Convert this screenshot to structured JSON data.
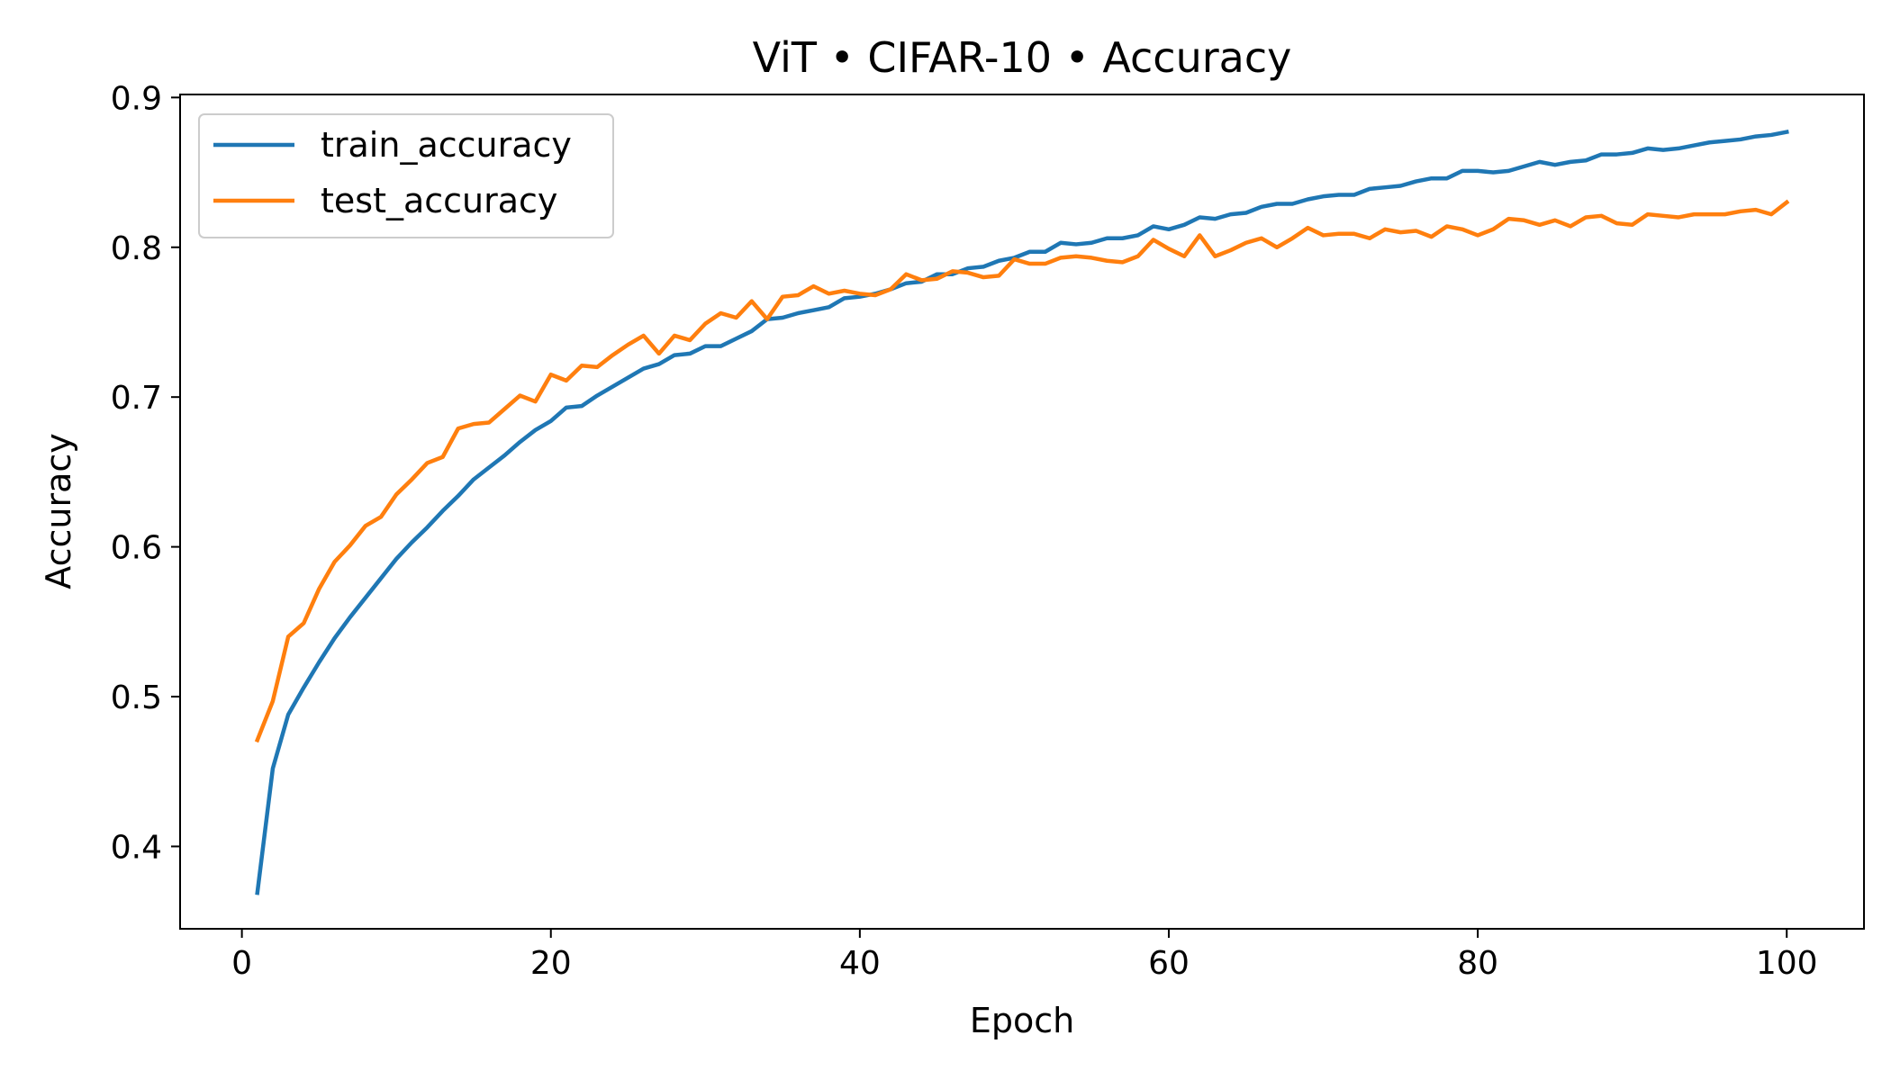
{
  "chart_data": {
    "type": "line",
    "title": "ViT • CIFAR-10 • Accuracy",
    "xlabel": "Epoch",
    "ylabel": "Accuracy",
    "xlim": [
      -4,
      105
    ],
    "ylim": [
      0.345,
      0.902
    ],
    "xticks": [
      0,
      20,
      40,
      60,
      80,
      100
    ],
    "yticks": [
      0.4,
      0.5,
      0.6,
      0.7,
      0.8,
      0.9
    ],
    "xtick_labels": [
      "0",
      "20",
      "40",
      "60",
      "80",
      "100"
    ],
    "ytick_labels": [
      "0.4",
      "0.5",
      "0.6",
      "0.7",
      "0.8",
      "0.9"
    ],
    "grid": false,
    "legend_position": "upper-left",
    "x": [
      1,
      2,
      3,
      4,
      5,
      6,
      7,
      8,
      9,
      10,
      11,
      12,
      13,
      14,
      15,
      16,
      17,
      18,
      19,
      20,
      21,
      22,
      23,
      24,
      25,
      26,
      27,
      28,
      29,
      30,
      31,
      32,
      33,
      34,
      35,
      36,
      37,
      38,
      39,
      40,
      41,
      42,
      43,
      44,
      45,
      46,
      47,
      48,
      49,
      50,
      51,
      52,
      53,
      54,
      55,
      56,
      57,
      58,
      59,
      60,
      61,
      62,
      63,
      64,
      65,
      66,
      67,
      68,
      69,
      70,
      71,
      72,
      73,
      74,
      75,
      76,
      77,
      78,
      79,
      80,
      81,
      82,
      83,
      84,
      85,
      86,
      87,
      88,
      89,
      90,
      91,
      92,
      93,
      94,
      95,
      96,
      97,
      98,
      99,
      100
    ],
    "series": [
      {
        "name": "train_accuracy",
        "color": "#1f77b4",
        "values": [
          0.369,
          0.452,
          0.488,
          0.506,
          0.523,
          0.539,
          0.553,
          0.566,
          0.579,
          0.592,
          0.603,
          0.613,
          0.624,
          0.634,
          0.645,
          0.653,
          0.661,
          0.67,
          0.678,
          0.684,
          0.693,
          0.694,
          0.701,
          0.707,
          0.713,
          0.719,
          0.722,
          0.728,
          0.729,
          0.734,
          0.734,
          0.739,
          0.744,
          0.752,
          0.753,
          0.756,
          0.758,
          0.76,
          0.766,
          0.767,
          0.769,
          0.772,
          0.776,
          0.777,
          0.782,
          0.782,
          0.786,
          0.787,
          0.791,
          0.793,
          0.797,
          0.797,
          0.803,
          0.802,
          0.803,
          0.806,
          0.806,
          0.808,
          0.814,
          0.812,
          0.815,
          0.82,
          0.819,
          0.822,
          0.823,
          0.827,
          0.829,
          0.829,
          0.832,
          0.834,
          0.835,
          0.835,
          0.839,
          0.84,
          0.841,
          0.844,
          0.846,
          0.846,
          0.851,
          0.851,
          0.85,
          0.851,
          0.854,
          0.857,
          0.855,
          0.857,
          0.858,
          0.862,
          0.862,
          0.863,
          0.866,
          0.865,
          0.866,
          0.868,
          0.87,
          0.871,
          0.872,
          0.874,
          0.875,
          0.877
        ]
      },
      {
        "name": "test_accuracy",
        "color": "#ff7f0e",
        "values": [
          0.471,
          0.497,
          0.54,
          0.549,
          0.572,
          0.59,
          0.601,
          0.614,
          0.62,
          0.635,
          0.645,
          0.656,
          0.66,
          0.679,
          0.682,
          0.683,
          0.692,
          0.701,
          0.697,
          0.715,
          0.711,
          0.721,
          0.72,
          0.728,
          0.735,
          0.741,
          0.729,
          0.741,
          0.738,
          0.749,
          0.756,
          0.753,
          0.764,
          0.752,
          0.767,
          0.768,
          0.774,
          0.769,
          0.771,
          0.769,
          0.768,
          0.772,
          0.782,
          0.778,
          0.779,
          0.784,
          0.783,
          0.78,
          0.781,
          0.792,
          0.789,
          0.789,
          0.793,
          0.794,
          0.793,
          0.791,
          0.79,
          0.794,
          0.805,
          0.799,
          0.794,
          0.808,
          0.794,
          0.798,
          0.803,
          0.806,
          0.8,
          0.806,
          0.813,
          0.808,
          0.809,
          0.809,
          0.806,
          0.812,
          0.81,
          0.811,
          0.807,
          0.814,
          0.812,
          0.808,
          0.812,
          0.819,
          0.818,
          0.815,
          0.818,
          0.814,
          0.82,
          0.821,
          0.816,
          0.815,
          0.822,
          0.821,
          0.82,
          0.822,
          0.822,
          0.822,
          0.824,
          0.825,
          0.822,
          0.83
        ]
      }
    ]
  }
}
